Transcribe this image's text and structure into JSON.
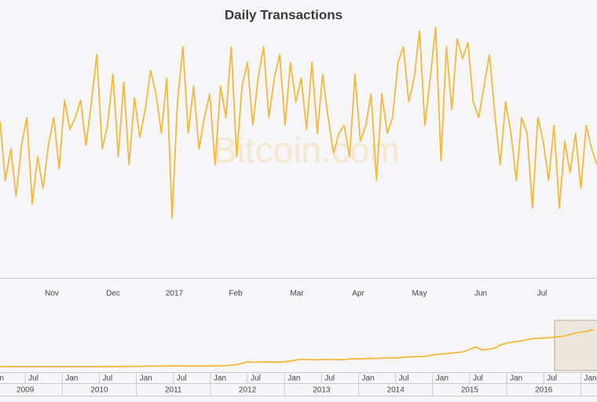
{
  "chart_data": [
    {
      "type": "line",
      "title": "Daily Transactions",
      "watermark": "Bitcoin.com",
      "color": "#f2b93b",
      "ylim": [
        0,
        390000
      ],
      "x_labels": [
        "Nov",
        "Dec",
        "2017",
        "Feb",
        "Mar",
        "Apr",
        "May",
        "Jun",
        "Jul"
      ],
      "values": [
        220000,
        137500,
        181500,
        115500,
        187000,
        225500,
        104500,
        170500,
        126500,
        187000,
        225500,
        154000,
        249700,
        209000,
        225500,
        249700,
        187000,
        247500,
        313500,
        181500,
        214500,
        286000,
        170500,
        275000,
        159500,
        253000,
        198000,
        236500,
        291500,
        258500,
        203500,
        280500,
        84700,
        247500,
        324500,
        203500,
        269500,
        181500,
        225500,
        258500,
        159500,
        269500,
        225500,
        324500,
        170500,
        269500,
        302500,
        214500,
        280500,
        324500,
        225500,
        280500,
        313500,
        214500,
        302500,
        247500,
        280500,
        209000,
        302500,
        203500,
        286000,
        225500,
        176000,
        203500,
        214500,
        170500,
        286000,
        192500,
        214500,
        258500,
        137500,
        258500,
        203500,
        225500,
        302500,
        324500,
        247500,
        280500,
        346500,
        214500,
        280500,
        352000,
        165000,
        324500,
        236500,
        335500,
        308000,
        330000,
        247500,
        225500,
        269500,
        313500,
        231000,
        159500,
        247500,
        203500,
        137500,
        225500,
        203500,
        99000,
        225500,
        192500,
        137500,
        214500,
        99000,
        192500,
        148500,
        203500,
        126500,
        214500,
        181500,
        159500
      ]
    },
    {
      "type": "line",
      "color": "#f2b93b",
      "ylim": [
        0,
        400000
      ],
      "month_labels": [
        "Jan",
        "Jul",
        "Jan",
        "Jul",
        "Jan",
        "Jul",
        "Jan",
        "Jul",
        "Jan",
        "Jul",
        "Jan",
        "Jul",
        "Jan",
        "Jul",
        "Jan",
        "Jul",
        "Jan"
      ],
      "year_labels": [
        "2009",
        "2010",
        "2011",
        "2012",
        "2013",
        "2014",
        "2015",
        "2016"
      ],
      "x": [
        "2009-01",
        "2009-02",
        "2009-03",
        "2009-04",
        "2009-05",
        "2009-06",
        "2009-07",
        "2009-08",
        "2009-09",
        "2009-10",
        "2009-11",
        "2009-12",
        "2010-01",
        "2010-02",
        "2010-03",
        "2010-04",
        "2010-05",
        "2010-06",
        "2010-07",
        "2010-08",
        "2010-09",
        "2010-10",
        "2010-11",
        "2010-12",
        "2011-01",
        "2011-02",
        "2011-03",
        "2011-04",
        "2011-05",
        "2011-06",
        "2011-07",
        "2011-08",
        "2011-09",
        "2011-10",
        "2011-11",
        "2011-12",
        "2012-01",
        "2012-02",
        "2012-03",
        "2012-04",
        "2012-05",
        "2012-06",
        "2012-07",
        "2012-08",
        "2012-09",
        "2012-10",
        "2012-11",
        "2012-12",
        "2013-01",
        "2013-02",
        "2013-03",
        "2013-04",
        "2013-05",
        "2013-06",
        "2013-07",
        "2013-08",
        "2013-09",
        "2013-10",
        "2013-11",
        "2013-12",
        "2014-01",
        "2014-02",
        "2014-03",
        "2014-04",
        "2014-05",
        "2014-06",
        "2014-07",
        "2014-08",
        "2014-09",
        "2014-10",
        "2014-11",
        "2014-12",
        "2015-01",
        "2015-02",
        "2015-03",
        "2015-04",
        "2015-05",
        "2015-06",
        "2015-07",
        "2015-08",
        "2015-09",
        "2015-10",
        "2015-11",
        "2015-12",
        "2016-01",
        "2016-02",
        "2016-03",
        "2016-04",
        "2016-05",
        "2016-06",
        "2016-07",
        "2016-08",
        "2016-09",
        "2016-10",
        "2016-11",
        "2016-12",
        "2017-01",
        "2017-02",
        "2017-03"
      ],
      "values": [
        300,
        300,
        300,
        400,
        400,
        400,
        500,
        500,
        500,
        500,
        600,
        600,
        600,
        700,
        700,
        800,
        800,
        900,
        900,
        1000,
        1200,
        1500,
        1800,
        2200,
        2500,
        3000,
        3500,
        4000,
        4500,
        6000,
        7000,
        6500,
        6000,
        5500,
        5000,
        5000,
        6000,
        7000,
        8000,
        10000,
        15000,
        25000,
        40000,
        35000,
        38000,
        40000,
        37000,
        36000,
        40000,
        45000,
        55000,
        60000,
        58000,
        55000,
        57000,
        60000,
        58000,
        55000,
        60000,
        65000,
        62000,
        65000,
        68000,
        66000,
        70000,
        72000,
        70000,
        75000,
        78000,
        80000,
        82000,
        85000,
        95000,
        100000,
        105000,
        110000,
        115000,
        120000,
        140000,
        160000,
        135000,
        140000,
        150000,
        175000,
        190000,
        200000,
        205000,
        215000,
        225000,
        230000,
        230000,
        235000,
        240000,
        245000,
        255000,
        270000,
        280000,
        285000,
        300000
      ]
    }
  ]
}
